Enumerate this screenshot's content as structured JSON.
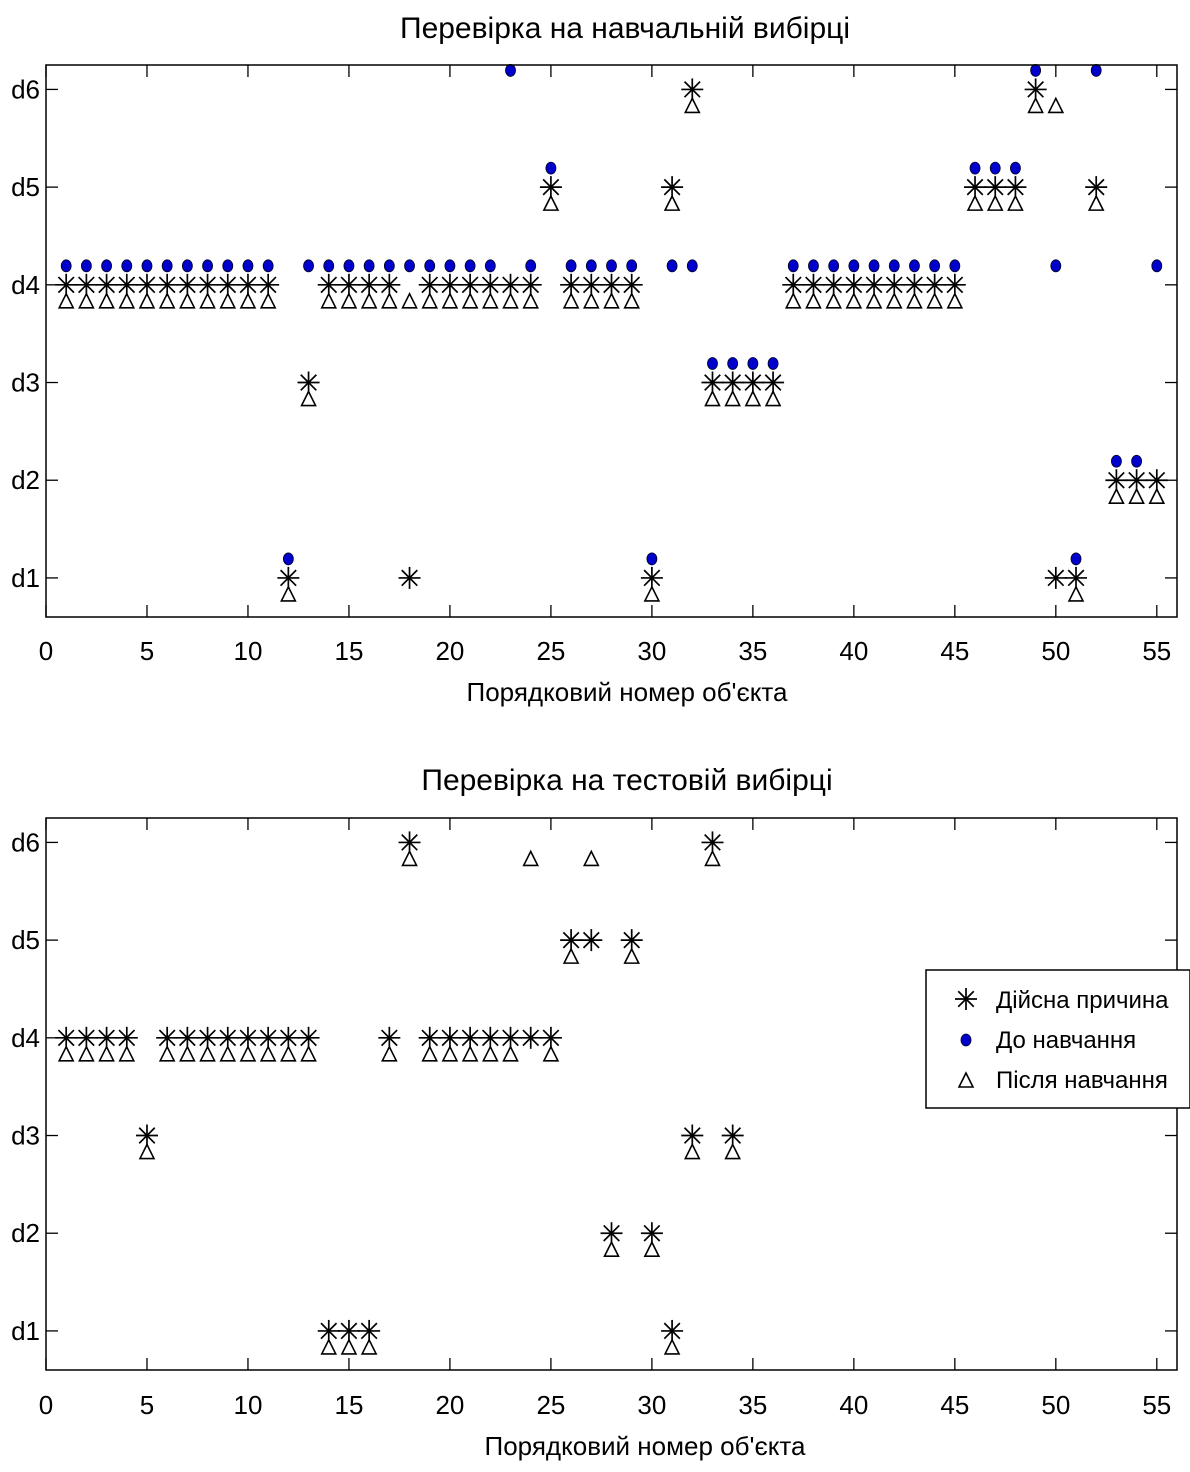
{
  "chart_data": [
    {
      "type": "scatter",
      "title": "Перевірка на навчальній вибірці",
      "xlabel": "Порядковий номер об'єкта",
      "ylabel": "",
      "xlim": [
        0,
        56
      ],
      "ylim": [
        0.6,
        6.25
      ],
      "xticks": [
        0,
        5,
        10,
        15,
        20,
        25,
        30,
        35,
        40,
        45,
        50,
        55
      ],
      "yticks": [
        1,
        2,
        3,
        4,
        5,
        6
      ],
      "ytick_labels": [
        "d1",
        "d2",
        "d3",
        "d4",
        "d5",
        "d6"
      ],
      "grid": false,
      "series": [
        {
          "name": "Дійсна причина",
          "marker": "asterisk",
          "color": "#000000",
          "x": [
            1,
            2,
            3,
            4,
            5,
            6,
            7,
            8,
            9,
            10,
            11,
            12,
            13,
            14,
            15,
            16,
            17,
            18,
            19,
            20,
            21,
            22,
            23,
            24,
            25,
            26,
            27,
            28,
            29,
            30,
            31,
            32,
            33,
            34,
            35,
            36,
            37,
            38,
            39,
            40,
            41,
            42,
            43,
            44,
            45,
            46,
            47,
            48,
            49,
            50,
            51,
            52,
            53,
            54,
            55
          ],
          "y": [
            4,
            4,
            4,
            4,
            4,
            4,
            4,
            4,
            4,
            4,
            4,
            1,
            3,
            4,
            4,
            4,
            4,
            1,
            4,
            4,
            4,
            4,
            4,
            4,
            5,
            4,
            4,
            4,
            4,
            1,
            5,
            6,
            3,
            3,
            3,
            3,
            4,
            4,
            4,
            4,
            4,
            4,
            4,
            4,
            4,
            5,
            5,
            5,
            6,
            1,
            1,
            5,
            2,
            2,
            2
          ]
        },
        {
          "name": "До навчання",
          "marker": "dot",
          "color": "#0000cc",
          "x": [
            1,
            2,
            3,
            4,
            5,
            6,
            7,
            8,
            9,
            10,
            11,
            12,
            13,
            14,
            15,
            16,
            17,
            18,
            19,
            20,
            21,
            22,
            23,
            24,
            25,
            26,
            27,
            28,
            29,
            30,
            31,
            32,
            33,
            34,
            35,
            36,
            37,
            38,
            39,
            40,
            41,
            42,
            43,
            44,
            45,
            46,
            47,
            48,
            49,
            50,
            51,
            52,
            53,
            54,
            55
          ],
          "y": [
            4,
            4,
            4,
            4,
            4,
            4,
            4,
            4,
            4,
            4,
            4,
            1,
            4,
            4,
            4,
            4,
            4,
            4,
            4,
            4,
            4,
            4,
            6,
            4,
            5,
            4,
            4,
            4,
            4,
            1,
            4,
            4,
            3,
            3,
            3,
            3,
            4,
            4,
            4,
            4,
            4,
            4,
            4,
            4,
            4,
            5,
            5,
            5,
            6,
            4,
            1,
            6,
            2,
            2,
            4
          ]
        },
        {
          "name": "Після навчання",
          "marker": "triangle",
          "color": "#000000",
          "x": [
            1,
            2,
            3,
            4,
            5,
            6,
            7,
            8,
            9,
            10,
            11,
            12,
            13,
            14,
            15,
            16,
            17,
            18,
            19,
            20,
            21,
            22,
            23,
            24,
            25,
            26,
            27,
            28,
            29,
            30,
            31,
            32,
            33,
            34,
            35,
            36,
            37,
            38,
            39,
            40,
            41,
            42,
            43,
            44,
            45,
            46,
            47,
            48,
            49,
            50,
            51,
            52,
            53,
            54,
            55
          ],
          "y": [
            4,
            4,
            4,
            4,
            4,
            4,
            4,
            4,
            4,
            4,
            4,
            1,
            3,
            4,
            4,
            4,
            4,
            4,
            4,
            4,
            4,
            4,
            4,
            4,
            5,
            4,
            4,
            4,
            4,
            1,
            5,
            6,
            3,
            3,
            3,
            3,
            4,
            4,
            4,
            4,
            4,
            4,
            4,
            4,
            4,
            5,
            5,
            5,
            6,
            6,
            1,
            5,
            2,
            2,
            2
          ]
        }
      ]
    },
    {
      "type": "scatter",
      "title": "Перевірка на тестовій вибірці",
      "xlabel": "Порядковий номер об'єкта",
      "ylabel": "",
      "xlim": [
        0,
        56
      ],
      "ylim": [
        0.6,
        6.25
      ],
      "xticks": [
        0,
        5,
        10,
        15,
        20,
        25,
        30,
        35,
        40,
        45,
        50,
        55
      ],
      "yticks": [
        1,
        2,
        3,
        4,
        5,
        6
      ],
      "ytick_labels": [
        "d1",
        "d2",
        "d3",
        "d4",
        "d5",
        "d6"
      ],
      "grid": false,
      "legend": {
        "placement": "right",
        "entries": [
          "Дійсна причина",
          "До навчання",
          "Після навчання"
        ]
      },
      "series": [
        {
          "name": "Дійсна причина",
          "marker": "asterisk",
          "color": "#000000",
          "x": [
            1,
            2,
            3,
            4,
            5,
            6,
            7,
            8,
            9,
            10,
            11,
            12,
            13,
            14,
            15,
            16,
            17,
            18,
            19,
            20,
            21,
            22,
            23,
            24,
            25,
            26,
            27,
            28,
            29,
            30,
            31,
            32,
            33,
            34
          ],
          "y": [
            4,
            4,
            4,
            4,
            3,
            4,
            4,
            4,
            4,
            4,
            4,
            4,
            4,
            1,
            1,
            1,
            4,
            6,
            4,
            4,
            4,
            4,
            4,
            4,
            4,
            5,
            5,
            2,
            5,
            2,
            1,
            3,
            6,
            3
          ]
        },
        {
          "name": "До навчання",
          "marker": "dot",
          "color": "#0000cc",
          "x": [],
          "y": []
        },
        {
          "name": "Після навчання",
          "marker": "triangle",
          "color": "#000000",
          "x": [
            1,
            2,
            3,
            4,
            5,
            6,
            7,
            8,
            9,
            10,
            11,
            12,
            13,
            14,
            15,
            16,
            17,
            18,
            19,
            20,
            21,
            22,
            23,
            24,
            25,
            26,
            27,
            28,
            29,
            30,
            31,
            32,
            33,
            34
          ],
          "y": [
            4,
            4,
            4,
            4,
            3,
            4,
            4,
            4,
            4,
            4,
            4,
            4,
            4,
            1,
            1,
            1,
            4,
            6,
            4,
            4,
            4,
            4,
            4,
            6,
            4,
            5,
            6,
            2,
            5,
            2,
            1,
            3,
            6,
            3
          ]
        }
      ]
    }
  ]
}
